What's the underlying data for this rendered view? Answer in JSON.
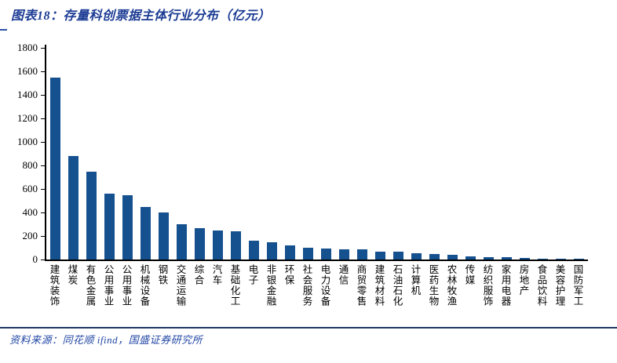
{
  "header": {
    "title": "图表18：存量科创票据主体行业分布（亿元）"
  },
  "footer": {
    "source": "资料来源：同花顺 ifind，国盛证券研究所"
  },
  "colors": {
    "bar": "#15508F",
    "title_blue": "#1C3C94",
    "separator_navy": "#1F3864",
    "axis_black": "#000000"
  },
  "chart_data": {
    "type": "bar",
    "title": "存量科创票据主体行业分布（亿元）",
    "categories": [
      "建筑装饰",
      "煤炭",
      "有色金属",
      "公用事业",
      "公用事业",
      "机械设备",
      "钢铁",
      "交通运输",
      "综合",
      "汽车",
      "基础化工",
      "电子",
      "非银金融",
      "环保",
      "社会服务",
      "电力设备",
      "通信",
      "商贸零售",
      "建筑材料",
      "石油石化",
      "计算机",
      "医药生物",
      "农林牧渔",
      "传媒",
      "纺织服饰",
      "家用电器",
      "房地产",
      "食品饮料",
      "美容护理",
      "国防军工"
    ],
    "values": [
      1550,
      880,
      750,
      560,
      550,
      450,
      400,
      300,
      270,
      250,
      240,
      160,
      150,
      120,
      100,
      92,
      90,
      85,
      70,
      65,
      55,
      45,
      38,
      30,
      22,
      18,
      12,
      10,
      8,
      5
    ],
    "xlabel": "",
    "ylabel": "",
    "ylim": [
      0,
      1800
    ],
    "ytick_step": 200,
    "grid": false,
    "legend_position": "none",
    "bar_color": "#15508F"
  }
}
